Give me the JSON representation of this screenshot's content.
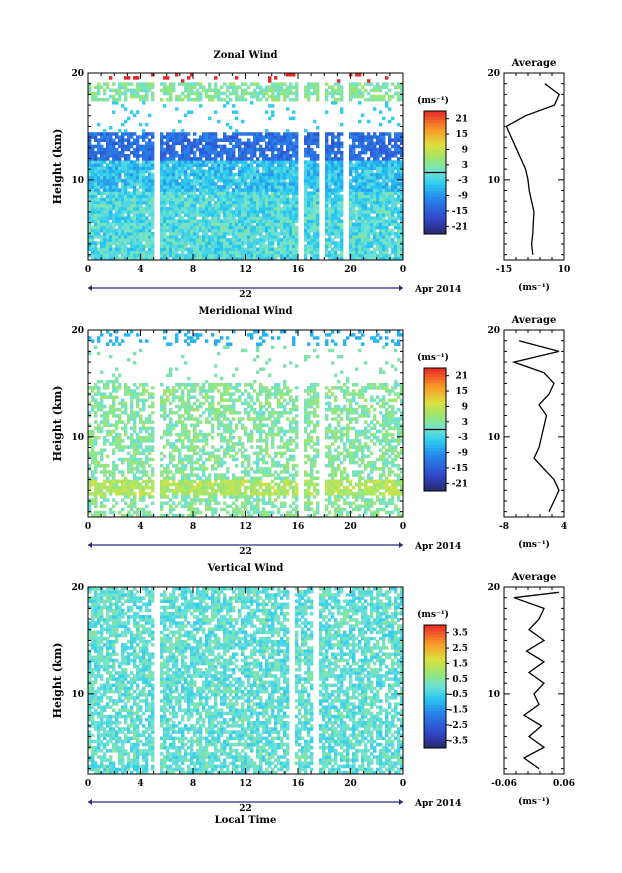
{
  "figure": {
    "xlabel": "Local Time",
    "date_label": "Apr 2014",
    "day_label": "22",
    "colorbar_unit": "(ms⁻¹)"
  },
  "chart_data": [
    {
      "type": "heatmap",
      "title": "Zonal Wind",
      "ylabel": "Height (km)",
      "xlim": [
        0,
        24
      ],
      "ylim": [
        2.5,
        20
      ],
      "xticks": [
        "0",
        "4",
        "8",
        "12",
        "16",
        "20",
        "0"
      ],
      "yticks": [
        "10",
        "20"
      ],
      "colorbar": {
        "min": -24,
        "max": 24,
        "ticks": [
          "21",
          "15",
          "9",
          "3",
          "-3",
          "-9",
          "-15",
          "-21"
        ]
      },
      "gaps_hours": [
        5.3,
        16.2,
        17.8,
        19.6
      ],
      "dominant_values": {
        "upper_band_km": [
          17.5,
          19
        ],
        "upper_value": 1,
        "jet_band_km": [
          11.8,
          14.5
        ],
        "jet_value": -14,
        "lower_value": -2
      },
      "profile": {
        "title": "Average",
        "xlim": [
          -15,
          10
        ],
        "xticks": [
          "-15",
          "10"
        ],
        "xlabel": "(ms⁻¹)",
        "height": [
          3,
          4,
          5,
          6,
          7,
          8,
          9,
          10,
          11,
          12,
          13,
          14,
          15,
          16,
          17,
          18,
          19
        ],
        "value": [
          -3,
          -3.5,
          -3,
          -2.8,
          -2.5,
          -3.5,
          -4.5,
          -5,
          -6,
          -8,
          -10,
          -12,
          -14,
          -6,
          6,
          8,
          2
        ]
      }
    },
    {
      "type": "heatmap",
      "title": "Meridional Wind",
      "ylabel": "Height (km)",
      "xlim": [
        0,
        24
      ],
      "ylim": [
        2.5,
        20
      ],
      "xticks": [
        "0",
        "4",
        "8",
        "12",
        "16",
        "20",
        "0"
      ],
      "yticks": [
        "10",
        "20"
      ],
      "colorbar": {
        "min": -24,
        "max": 24,
        "ticks": [
          "21",
          "15",
          "9",
          "3",
          "-3",
          "-9",
          "-15",
          "-21"
        ]
      },
      "gaps_hours": [
        5.3,
        16.2,
        17.8
      ],
      "dominant_values": {
        "lower_band_km": [
          4.5,
          6
        ],
        "lower_value": 6,
        "mid_value": 0
      },
      "profile": {
        "title": "Average",
        "xlim": [
          -8,
          4
        ],
        "xticks": [
          "-8",
          "4"
        ],
        "xlabel": "(ms⁻¹)",
        "height": [
          3,
          4,
          5,
          6,
          7,
          8,
          9,
          10,
          11,
          12,
          13,
          14,
          15,
          16,
          17,
          18,
          19
        ],
        "value": [
          1,
          2,
          3,
          2,
          0,
          -2,
          -1,
          -0.5,
          0,
          0.5,
          -1,
          1,
          2,
          0,
          -6,
          3,
          -5
        ]
      }
    },
    {
      "type": "heatmap",
      "title": "Vertical Wind",
      "ylabel": "Height (km)",
      "xlim": [
        0,
        24
      ],
      "ylim": [
        2.5,
        20
      ],
      "xticks": [
        "0",
        "4",
        "8",
        "12",
        "16",
        "20",
        "0"
      ],
      "yticks": [
        "10",
        "20"
      ],
      "colorbar": {
        "min": -4,
        "max": 4,
        "ticks": [
          "3.5",
          "2.5",
          "1.5",
          "0.5",
          "-0.5",
          "-1.5",
          "-2.5",
          "-3.5"
        ]
      },
      "gaps_hours": [
        5.3,
        15.6,
        17.4
      ],
      "dominant_values": {
        "typical_value": -0.3
      },
      "profile": {
        "title": "Average",
        "xlim": [
          -0.06,
          0.06
        ],
        "xticks": [
          "-0.06",
          "0.06"
        ],
        "xlabel": "(ms⁻¹)",
        "height": [
          3,
          4,
          5,
          6,
          7,
          8,
          9,
          10,
          11,
          12,
          13,
          14,
          15,
          16,
          17,
          18,
          19,
          19.5
        ],
        "value": [
          0.01,
          -0.02,
          0.02,
          -0.01,
          0.015,
          -0.02,
          0.01,
          0,
          0.02,
          -0.01,
          0.02,
          -0.015,
          0.02,
          -0.01,
          0.01,
          0.02,
          -0.04,
          0.05
        ]
      }
    }
  ]
}
